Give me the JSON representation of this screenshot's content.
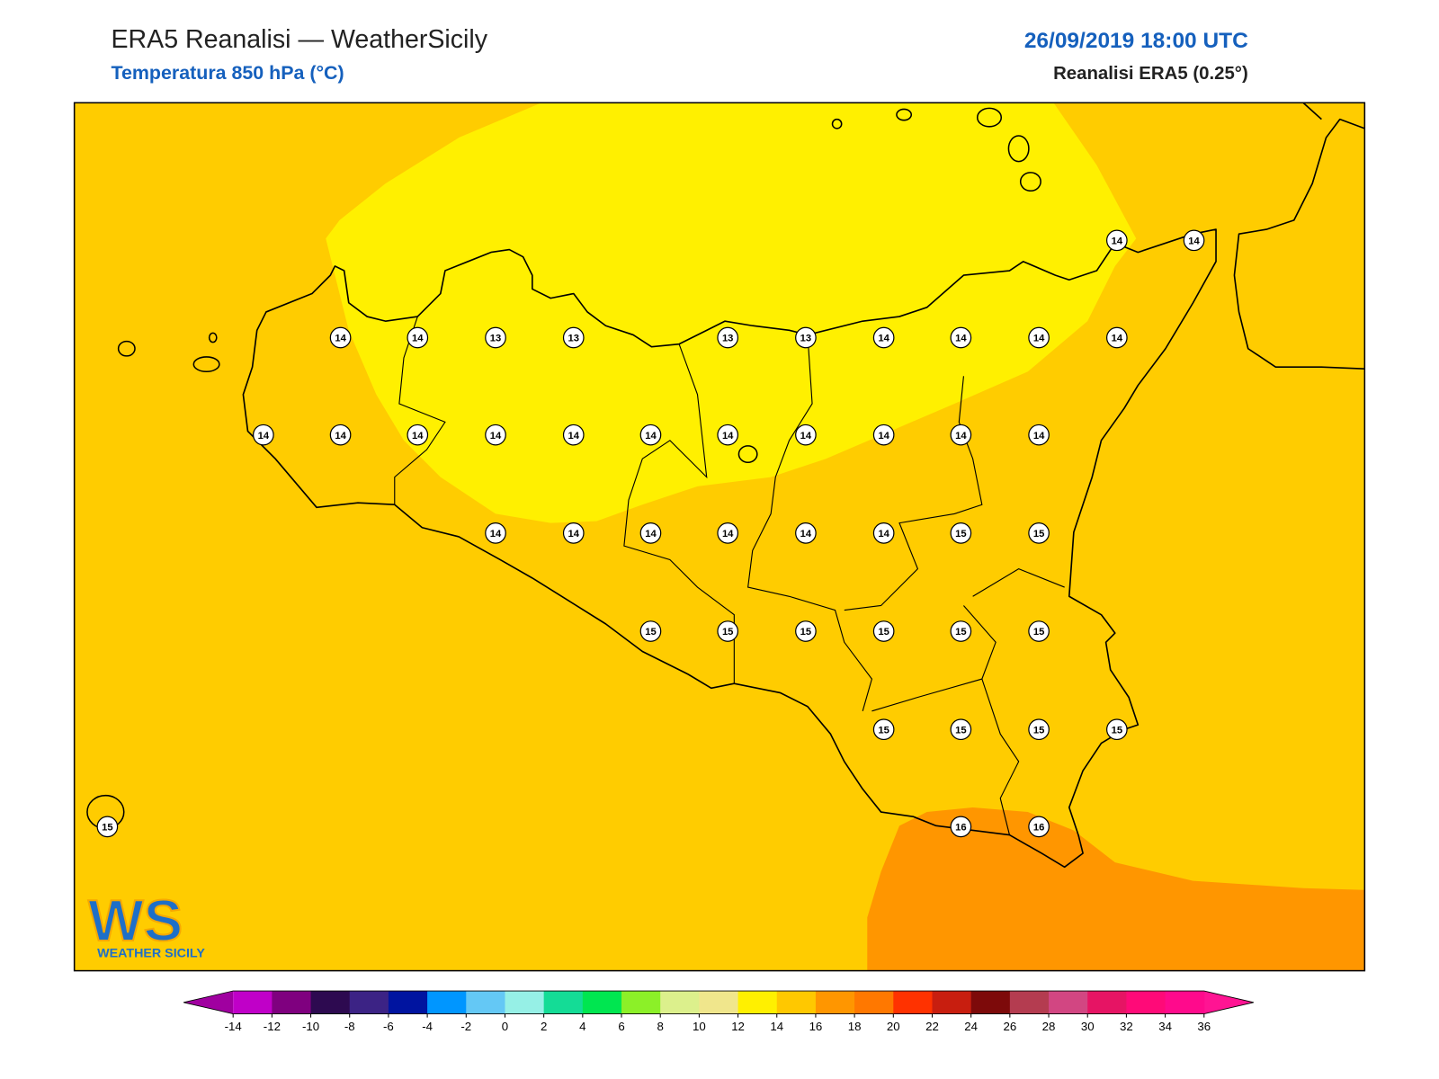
{
  "header": {
    "title": "ERA5 Reanalisi — WeatherSicily",
    "subtitle": "Temperatura 850 hPa (°C)",
    "datetime": "26/09/2019 18:00 UTC",
    "source": "Reanalisi ERA5 (0.25°)"
  },
  "map": {
    "labels": [
      14,
      14,
      14,
      14,
      13,
      13,
      13,
      13,
      14,
      14,
      14,
      14,
      14,
      14,
      14,
      14,
      14,
      14,
      14,
      14,
      14,
      14,
      14,
      14,
      14,
      14,
      14,
      14,
      14,
      15,
      15,
      15,
      15,
      15,
      15,
      15,
      15,
      15,
      15,
      15,
      15,
      15,
      16,
      16
    ]
  },
  "logo": {
    "mark": "WS",
    "text": "WEATHER SICILY"
  },
  "colorbar": {
    "ticks": [
      -14,
      -12,
      -10,
      -8,
      -6,
      -4,
      -2,
      0,
      2,
      4,
      6,
      8,
      10,
      12,
      14,
      16,
      18,
      20,
      22,
      24,
      26,
      28,
      30,
      32,
      34,
      36
    ],
    "colors": [
      "#c000c8",
      "#7f007f",
      "#2d0a50",
      "#3c2385",
      "#0014a0",
      "#0096ff",
      "#64c8f5",
      "#96f0e6",
      "#14dc96",
      "#00e650",
      "#8cf028",
      "#dcf08c",
      "#f0e68c",
      "#fff000",
      "#ffc800",
      "#ff9600",
      "#ff7800",
      "#ff3200",
      "#c81e0f",
      "#7d0a0a",
      "#b43c50",
      "#d24682",
      "#e61464",
      "#ff0a78",
      "#ff0a8c"
    ],
    "under_color": "#a000a0",
    "over_color": "#ff1493"
  }
}
